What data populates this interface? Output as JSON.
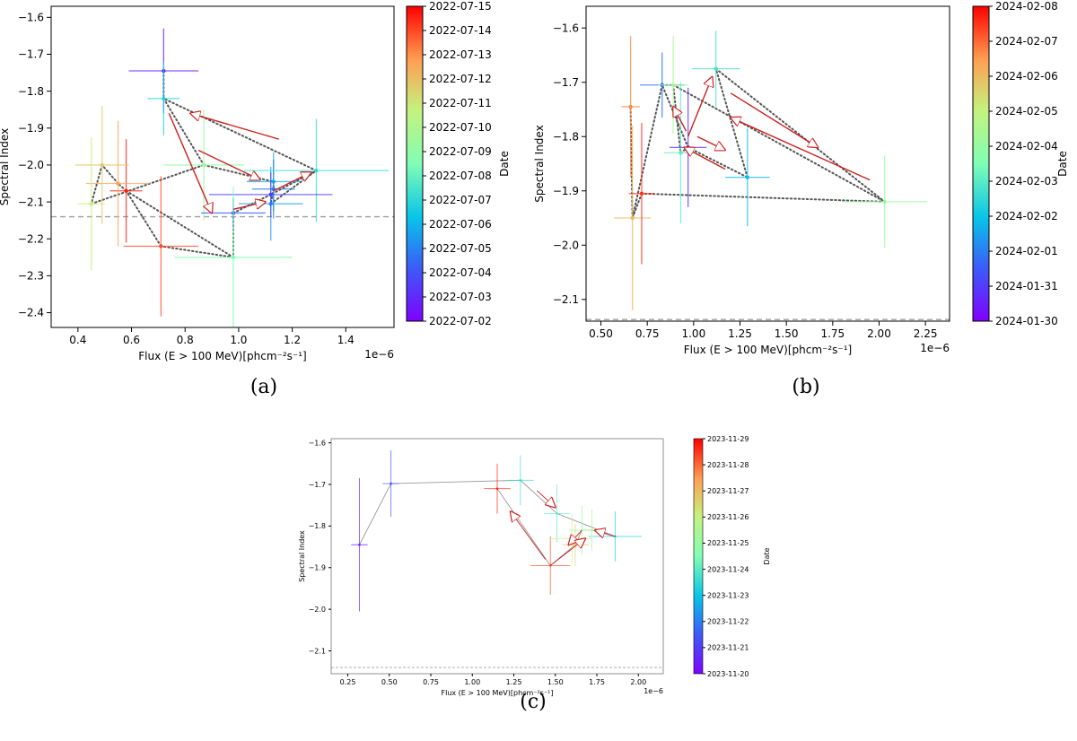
{
  "chart_data": [
    {
      "type": "scatter",
      "panel_label": "(a)",
      "xlabel": "Flux (E > 100 MeV)[phcm⁻²s⁻¹]",
      "ylabel": "Spectral Index",
      "x_multiplier": "1e−6",
      "xlim": [
        0.3,
        1.58
      ],
      "ylim": [
        -2.44,
        -1.57
      ],
      "xticks": [
        0.4,
        0.6,
        0.8,
        1.0,
        1.2,
        1.4
      ],
      "xtick_labels": [
        "0.4",
        "0.6",
        "0.8",
        "1.0",
        "1.2",
        "1.4"
      ],
      "yticks": [
        -2.4,
        -2.3,
        -2.2,
        -2.1,
        -2.0,
        -1.9,
        -1.8,
        -1.7,
        -1.6
      ],
      "ytick_labels": [
        "−2.4",
        "−2.3",
        "−2.2",
        "−2.1",
        "−2.0",
        "−1.9",
        "−1.8",
        "−1.7",
        "−1.6"
      ],
      "reference_line": -2.14,
      "colorbar": {
        "label": "Date",
        "tick_labels": [
          "2022-07-02",
          "2022-07-03",
          "2022-07-04",
          "2022-07-05",
          "2022-07-06",
          "2022-07-07",
          "2022-07-08",
          "2022-07-09",
          "2022-07-10",
          "2022-07-11",
          "2022-07-12",
          "2022-07-13",
          "2022-07-14",
          "2022-07-15"
        ]
      },
      "points": [
        {
          "x": 0.72,
          "y": -1.745,
          "xerr": 0.13,
          "yerr": 0.115,
          "c": 0.05
        },
        {
          "x": 0.72,
          "y": -1.82,
          "xerr": 0.06,
          "yerr": 0.1,
          "c": 0.37
        },
        {
          "x": 0.87,
          "y": -2.0,
          "xerr": 0.15,
          "yerr": 0.15,
          "c": 0.55
        },
        {
          "x": 1.13,
          "y": -2.045,
          "xerr": 0.1,
          "yerr": 0.08,
          "c": 0.3
        },
        {
          "x": 1.13,
          "y": -2.065,
          "xerr": 0.08,
          "yerr": 0.08,
          "c": 0.22
        },
        {
          "x": 1.12,
          "y": -2.105,
          "xerr": 0.12,
          "yerr": 0.1,
          "c": 0.27
        },
        {
          "x": 1.29,
          "y": -2.015,
          "xerr": 0.27,
          "yerr": 0.14,
          "c": 0.4
        },
        {
          "x": 1.12,
          "y": -2.08,
          "xerr": 0.23,
          "yerr": 0.06,
          "c": 0.12
        },
        {
          "x": 0.98,
          "y": -2.13,
          "xerr": 0.12,
          "yerr": 0.04,
          "c": 0.17
        },
        {
          "x": 0.98,
          "y": -2.25,
          "xerr": 0.22,
          "yerr": 0.19,
          "c": 0.5
        },
        {
          "x": 0.71,
          "y": -2.22,
          "xerr": 0.14,
          "yerr": 0.19,
          "c": 0.92
        },
        {
          "x": 0.58,
          "y": -2.07,
          "xerr": 0.06,
          "yerr": 0.14,
          "c": 0.97
        },
        {
          "x": 0.55,
          "y": -2.05,
          "xerr": 0.12,
          "yerr": 0.17,
          "c": 0.82
        },
        {
          "x": 0.49,
          "y": -2.0,
          "xerr": 0.1,
          "yerr": 0.16,
          "c": 0.75
        },
        {
          "x": 0.45,
          "y": -2.105,
          "xerr": 0.05,
          "yerr": 0.18,
          "c": 0.67
        }
      ],
      "path_order": [
        0,
        1,
        2,
        3,
        4,
        5,
        6,
        7,
        8,
        9,
        10,
        11,
        12,
        13,
        14
      ],
      "path_extra": [
        [
          14,
          2
        ],
        [
          11,
          9
        ],
        [
          6,
          1
        ]
      ],
      "arrows": [
        [
          1.15,
          -1.93,
          0.82,
          -1.86
        ],
        [
          0.85,
          -1.96,
          1.08,
          -2.04
        ],
        [
          0.74,
          -1.86,
          0.9,
          -2.13
        ],
        [
          0.98,
          -2.12,
          1.1,
          -2.1
        ],
        [
          1.13,
          -2.07,
          1.27,
          -2.02
        ]
      ]
    },
    {
      "type": "scatter",
      "panel_label": "(b)",
      "xlabel": "Flux (E > 100 MeV)[phcm⁻²s⁻¹]",
      "ylabel": "Spectral Index",
      "x_multiplier": "1e−6",
      "xlim": [
        0.42,
        2.38
      ],
      "ylim": [
        -2.14,
        -1.56
      ],
      "xticks": [
        0.5,
        0.75,
        1.0,
        1.25,
        1.5,
        1.75,
        2.0,
        2.25
      ],
      "xtick_labels": [
        "0.50",
        "0.75",
        "1.00",
        "1.25",
        "1.50",
        "1.75",
        "2.00",
        "2.25"
      ],
      "yticks": [
        -2.1,
        -2.0,
        -1.9,
        -1.8,
        -1.7,
        -1.6
      ],
      "ytick_labels": [
        "−2.1",
        "−2.0",
        "−1.9",
        "−1.8",
        "−1.7",
        "−1.6"
      ],
      "reference_line": -2.137,
      "colorbar": {
        "label": "Date",
        "tick_labels": [
          "2024-01-30",
          "2024-01-31",
          "2024-02-01",
          "2024-02-02",
          "2024-02-03",
          "2024-02-04",
          "2024-02-05",
          "2024-02-06",
          "2024-02-07",
          "2024-02-08"
        ]
      },
      "points": [
        {
          "x": 0.66,
          "y": -1.745,
          "xerr": 0.05,
          "yerr": 0.13,
          "c": 0.85
        },
        {
          "x": 0.67,
          "y": -1.95,
          "xerr": 0.1,
          "yerr": 0.17,
          "c": 0.78
        },
        {
          "x": 0.72,
          "y": -1.905,
          "xerr": 0.07,
          "yerr": 0.13,
          "c": 0.95
        },
        {
          "x": 0.83,
          "y": -1.705,
          "xerr": 0.12,
          "yerr": 0.06,
          "c": 0.2
        },
        {
          "x": 0.89,
          "y": -1.705,
          "xerr": 0.08,
          "yerr": 0.09,
          "c": 0.6
        },
        {
          "x": 0.93,
          "y": -1.83,
          "xerr": 0.09,
          "yerr": 0.13,
          "c": 0.45
        },
        {
          "x": 0.97,
          "y": -1.82,
          "xerr": 0.1,
          "yerr": 0.11,
          "c": 0.08
        },
        {
          "x": 1.12,
          "y": -1.675,
          "xerr": 0.13,
          "yerr": 0.07,
          "c": 0.42
        },
        {
          "x": 1.29,
          "y": -1.875,
          "xerr": 0.12,
          "yerr": 0.09,
          "c": 0.32
        },
        {
          "x": 2.03,
          "y": -1.92,
          "xerr": 0.23,
          "yerr": 0.085,
          "c": 0.55
        }
      ],
      "path_order": [
        3,
        4,
        5,
        6,
        8,
        7,
        9,
        2,
        1,
        0
      ],
      "path_extra": [
        [
          3,
          1
        ],
        [
          4,
          9
        ],
        [
          6,
          3
        ]
      ],
      "arrows": [
        [
          1.2,
          -1.72,
          1.67,
          -1.82
        ],
        [
          1.95,
          -1.88,
          1.2,
          -1.765
        ],
        [
          0.97,
          -1.8,
          1.1,
          -1.69
        ],
        [
          0.96,
          -1.79,
          0.89,
          -1.745
        ],
        [
          1.02,
          -1.8,
          1.17,
          -1.825
        ],
        [
          1.17,
          -1.86,
          0.95,
          -1.82
        ]
      ]
    },
    {
      "type": "scatter",
      "panel_label": "(c)",
      "xlabel": "Flux (E > 100 MeV)[phcm⁻²s⁻¹]",
      "ylabel": "Spectral Index",
      "x_multiplier": "1e−6",
      "xlim": [
        0.15,
        2.15
      ],
      "ylim": [
        -2.155,
        -1.59
      ],
      "xticks": [
        0.25,
        0.5,
        0.75,
        1.0,
        1.25,
        1.5,
        1.75,
        2.0
      ],
      "xtick_labels": [
        "0.25",
        "0.50",
        "0.75",
        "1.00",
        "1.25",
        "1.50",
        "1.75",
        "2.00"
      ],
      "yticks": [
        -2.1,
        -2.0,
        -1.9,
        -1.8,
        -1.7,
        -1.6
      ],
      "ytick_labels": [
        "−2.1",
        "−2.0",
        "−1.9",
        "−1.8",
        "−1.7",
        "−1.6"
      ],
      "reference_line": -2.14,
      "colorbar": {
        "label": "Date",
        "tick_labels": [
          "2023-11-20",
          "2023-11-21",
          "2023-11-22",
          "2023-11-23",
          "2023-11-24",
          "2023-11-25",
          "2023-11-26",
          "2023-11-27",
          "2023-11-28",
          "2023-11-29"
        ]
      },
      "points": [
        {
          "x": 0.32,
          "y": -1.845,
          "xerr": 0.05,
          "yerr": 0.16,
          "c": 0.05
        },
        {
          "x": 0.51,
          "y": -1.698,
          "xerr": 0.05,
          "yerr": 0.08,
          "c": 0.15
        },
        {
          "x": 1.29,
          "y": -1.69,
          "xerr": 0.08,
          "yerr": 0.06,
          "c": 0.4
        },
        {
          "x": 1.15,
          "y": -1.71,
          "xerr": 0.08,
          "yerr": 0.06,
          "c": 0.97
        },
        {
          "x": 1.51,
          "y": -1.77,
          "xerr": 0.08,
          "yerr": 0.07,
          "c": 0.45
        },
        {
          "x": 1.86,
          "y": -1.825,
          "xerr": 0.16,
          "yerr": 0.06,
          "c": 0.35
        },
        {
          "x": 1.47,
          "y": -1.895,
          "xerr": 0.12,
          "yerr": 0.07,
          "c": 0.92
        },
        {
          "x": 1.6,
          "y": -1.83,
          "xerr": 0.12,
          "yerr": 0.06,
          "c": 0.65
        },
        {
          "x": 1.66,
          "y": -1.81,
          "xerr": 0.08,
          "yerr": 0.06,
          "c": 0.55
        },
        {
          "x": 1.62,
          "y": -1.845,
          "xerr": 0.08,
          "yerr": 0.05,
          "c": 0.75
        },
        {
          "x": 1.72,
          "y": -1.81,
          "xerr": 0.06,
          "yerr": 0.05,
          "c": 0.6
        }
      ],
      "path_order": [
        0,
        1,
        2,
        4,
        5,
        10,
        8,
        9,
        6,
        3
      ],
      "path_extra": [],
      "arrows": [
        [
          1.39,
          -1.715,
          1.5,
          -1.755
        ],
        [
          1.44,
          -1.88,
          1.23,
          -1.765
        ],
        [
          1.86,
          -1.825,
          1.74,
          -1.81
        ],
        [
          1.66,
          -1.81,
          1.58,
          -1.845
        ],
        [
          1.47,
          -1.895,
          1.68,
          -1.83
        ]
      ]
    }
  ]
}
